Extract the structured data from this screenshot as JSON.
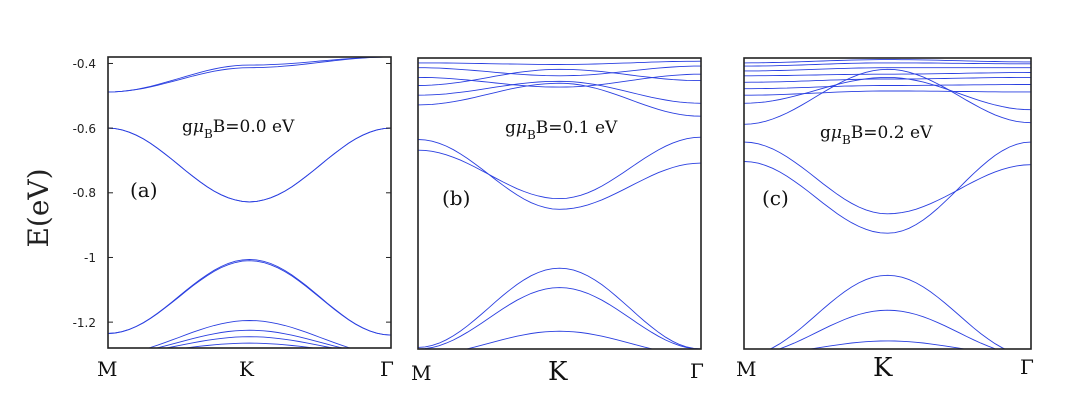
{
  "chart_data": {
    "type": "line",
    "ylabel": "E(eV)",
    "yticks": [
      -0.4,
      -0.6,
      -0.8,
      -1,
      -1.2
    ],
    "ytick_labels": [
      "-0.4",
      "-0.6",
      "-0.8",
      "-1",
      "-1.2"
    ],
    "xtick_labels": [
      "M",
      "K",
      "Γ"
    ],
    "ylim": [
      -1.28,
      -0.38
    ],
    "line_color": "#2a3fe0",
    "panels": [
      {
        "label": "(a)",
        "annotation": {
          "g": "g",
          "mu": "μ",
          "sub": "B",
          "rest": "B=0.0 eV"
        },
        "show_yticks": true,
        "bands": [
          {
            "M": -0.488,
            "K": -0.405,
            "G": -0.38
          },
          {
            "M": -0.488,
            "K": -0.413,
            "G": -0.38
          },
          {
            "M": -0.6,
            "K": -0.828,
            "G": -0.6
          },
          {
            "M": -0.6,
            "K": -0.828,
            "G": -0.6
          },
          {
            "M": -1.235,
            "K": -1.006,
            "G": -1.24
          },
          {
            "M": -1.235,
            "K": -1.01,
            "G": -1.24
          },
          {
            "M": -1.3,
            "K": -1.195,
            "G": -1.3
          },
          {
            "M": -1.3,
            "K": -1.225,
            "G": -1.3
          },
          {
            "M": -1.3,
            "K": -1.245,
            "G": -1.3
          },
          {
            "M": -1.3,
            "K": -1.265,
            "G": -1.3
          }
        ]
      },
      {
        "label": "(b)",
        "annotation": {
          "g": "g",
          "mu": "μ",
          "sub": "B",
          "rest": "B=0.1 eV"
        },
        "show_yticks": false,
        "bands": [
          {
            "M": -0.395,
            "K": -0.4,
            "G": -0.39
          },
          {
            "M": -0.41,
            "K": -0.435,
            "G": -0.405
          },
          {
            "M": -0.44,
            "K": -0.47,
            "G": -0.43
          },
          {
            "M": -0.465,
            "K": -0.415,
            "G": -0.45
          },
          {
            "M": -0.495,
            "K": -0.452,
            "G": -0.52
          },
          {
            "M": -0.525,
            "K": -0.458,
            "G": -0.56
          },
          {
            "M": -0.632,
            "K": -0.848,
            "G": -0.705
          },
          {
            "M": -0.665,
            "K": -0.815,
            "G": -0.625
          },
          {
            "M": -1.275,
            "K": -1.03,
            "G": -1.28
          },
          {
            "M": -1.28,
            "K": -1.09,
            "G": -1.28
          },
          {
            "M": -1.3,
            "K": -1.225,
            "G": -1.3
          }
        ]
      },
      {
        "label": "(c)",
        "annotation": {
          "g": "g",
          "mu": "μ",
          "sub": "B",
          "rest": "B=0.2 eV"
        },
        "show_yticks": false,
        "bands": [
          {
            "M": -0.395,
            "K": -0.385,
            "G": -0.392
          },
          {
            "M": -0.405,
            "K": -0.395,
            "G": -0.398
          },
          {
            "M": -0.42,
            "K": -0.41,
            "G": -0.41
          },
          {
            "M": -0.435,
            "K": -0.43,
            "G": -0.425
          },
          {
            "M": -0.455,
            "K": -0.445,
            "G": -0.44
          },
          {
            "M": -0.475,
            "K": -0.465,
            "G": -0.462
          },
          {
            "M": -0.495,
            "K": -0.482,
            "G": -0.485
          },
          {
            "M": -0.52,
            "K": -0.44,
            "G": -0.54
          },
          {
            "M": -0.585,
            "K": -0.415,
            "G": -0.58
          },
          {
            "M": -0.64,
            "K": -0.862,
            "G": -0.71
          },
          {
            "M": -0.7,
            "K": -0.922,
            "G": -0.64
          },
          {
            "M": -1.3,
            "K": -1.052,
            "G": -1.3
          },
          {
            "M": -1.3,
            "K": -1.16,
            "G": -1.3
          },
          {
            "M": -1.3,
            "K": -1.255,
            "G": -1.3
          }
        ]
      }
    ]
  }
}
